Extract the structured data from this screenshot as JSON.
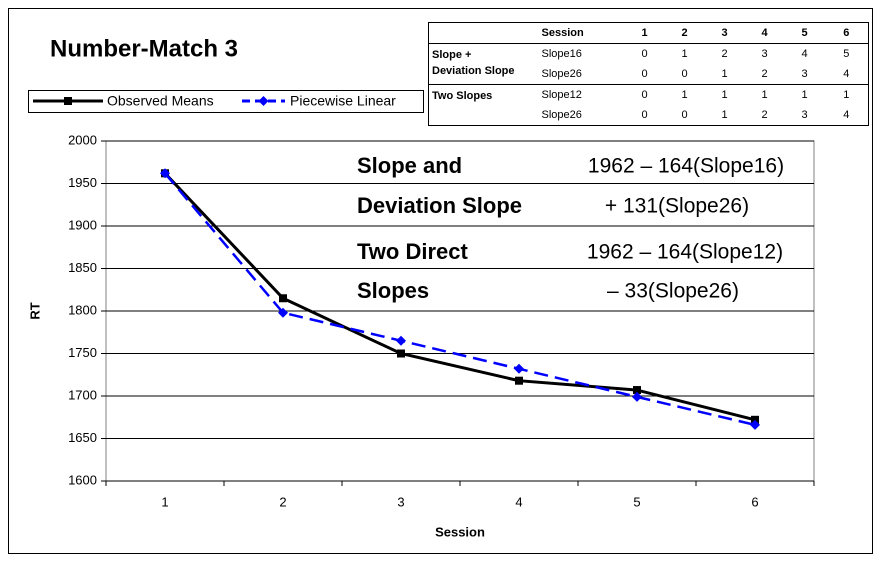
{
  "chart_data": {
    "type": "line",
    "title": "Number-Match 3",
    "x_label": "Session",
    "y_label": "RT",
    "categories": [
      1,
      2,
      3,
      4,
      5,
      6
    ],
    "series": [
      {
        "name": "Observed Means",
        "color": "#000000",
        "marker": "square",
        "dashed": false,
        "values": [
          1962,
          1815,
          1750,
          1718,
          1707,
          1672
        ]
      },
      {
        "name": "Piecewise Linear",
        "color": "#0000ff",
        "marker": "diamond",
        "dashed": true,
        "values": [
          1962,
          1798,
          1765,
          1732,
          1699,
          1666
        ]
      }
    ],
    "ylim": [
      1600,
      2000
    ],
    "yticks": [
      1600,
      1650,
      1700,
      1750,
      1800,
      1850,
      1900,
      1950,
      2000
    ],
    "grid": true,
    "annotations": [
      {
        "label": "Slope and",
        "equation": "1962 – 164(Slope16)"
      },
      {
        "label": "Deviation Slope",
        "equation": "+ 131(Slope26)"
      },
      {
        "label": "Two Direct",
        "equation": "1962 – 164(Slope12)"
      },
      {
        "label": "Slopes",
        "equation": "– 33(Slope26)"
      }
    ]
  },
  "table": {
    "header": [
      "Session",
      1,
      2,
      3,
      4,
      5,
      6
    ],
    "groups": [
      {
        "label": [
          "Slope +",
          "Deviation Slope"
        ],
        "rows": [
          {
            "name": "Slope16",
            "values": [
              0,
              1,
              2,
              3,
              4,
              5
            ]
          },
          {
            "name": "Slope26",
            "values": [
              0,
              0,
              1,
              2,
              3,
              4
            ]
          }
        ]
      },
      {
        "label": [
          "Two Slopes"
        ],
        "rows": [
          {
            "name": "Slope12",
            "values": [
              0,
              1,
              1,
              1,
              1,
              1
            ]
          },
          {
            "name": "Slope26",
            "values": [
              0,
              0,
              1,
              2,
              3,
              4
            ]
          }
        ]
      }
    ]
  }
}
